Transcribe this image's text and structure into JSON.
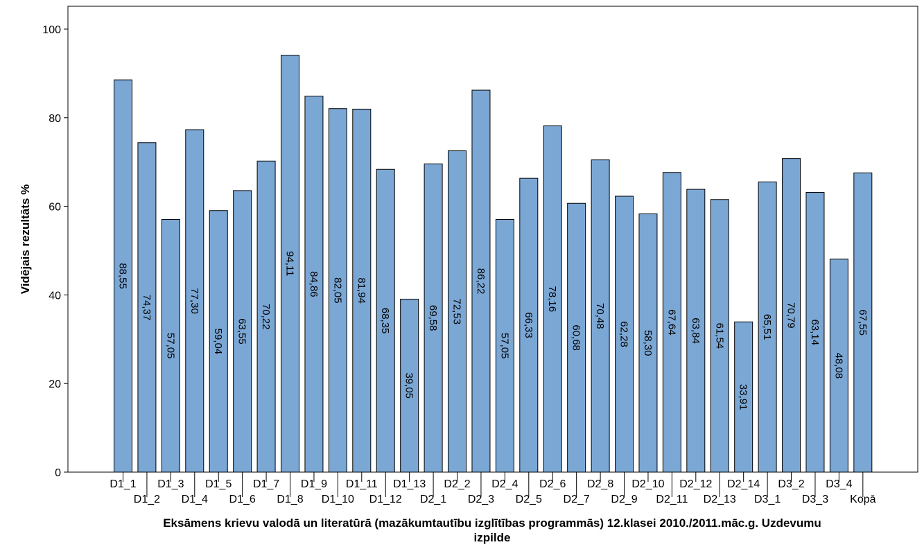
{
  "chart_data": {
    "type": "bar",
    "xlabel_lines": [
      "Eksāmens krievu valodā un literatūrā (mazākumtautību izglītības programmās) 12.klasei 2010./2011.māc.g. Uzdevumu",
      "izpilde"
    ],
    "ylabel": "Vidējais rezultāts %",
    "ylim": [
      0,
      100
    ],
    "yticks": [
      0,
      20,
      40,
      60,
      80,
      100
    ],
    "grid": false,
    "bar_color": "#7ba7d5",
    "categories": [
      "D1_1",
      "D1_2",
      "D1_3",
      "D1_4",
      "D1_5",
      "D1_6",
      "D1_7",
      "D1_8",
      "D1_9",
      "D1_10",
      "D1_11",
      "D1_12",
      "D1_13",
      "D2_1",
      "D2_2",
      "D2_3",
      "D2_4",
      "D2_5",
      "D2_6",
      "D2_7",
      "D2_8",
      "D2_9",
      "D2_10",
      "D2_11",
      "D2_12",
      "D2_13",
      "D2_14",
      "D3_1",
      "D3_2",
      "D3_3",
      "D3_4",
      "Kopā"
    ],
    "values": [
      88.55,
      74.37,
      57.05,
      77.3,
      59.04,
      63.55,
      70.22,
      94.11,
      84.86,
      82.05,
      81.94,
      68.35,
      39.05,
      69.58,
      72.53,
      86.22,
      57.05,
      66.33,
      78.16,
      60.68,
      70.48,
      62.28,
      58.3,
      67.64,
      63.84,
      61.54,
      33.91,
      65.51,
      70.79,
      63.14,
      48.08,
      67.55
    ],
    "value_labels": [
      "88,55",
      "74,37",
      "57,05",
      "77,30",
      "59,04",
      "63,55",
      "70,22",
      "94,11",
      "84,86",
      "82,05",
      "81,94",
      "68,35",
      "39,05",
      "69,58",
      "72,53",
      "86,22",
      "57,05",
      "66,33",
      "78,16",
      "60,68",
      "70,48",
      "62,28",
      "58,30",
      "67,64",
      "63,84",
      "61,54",
      "33,91",
      "65,51",
      "70,79",
      "63,14",
      "48,08",
      "67,55"
    ]
  }
}
